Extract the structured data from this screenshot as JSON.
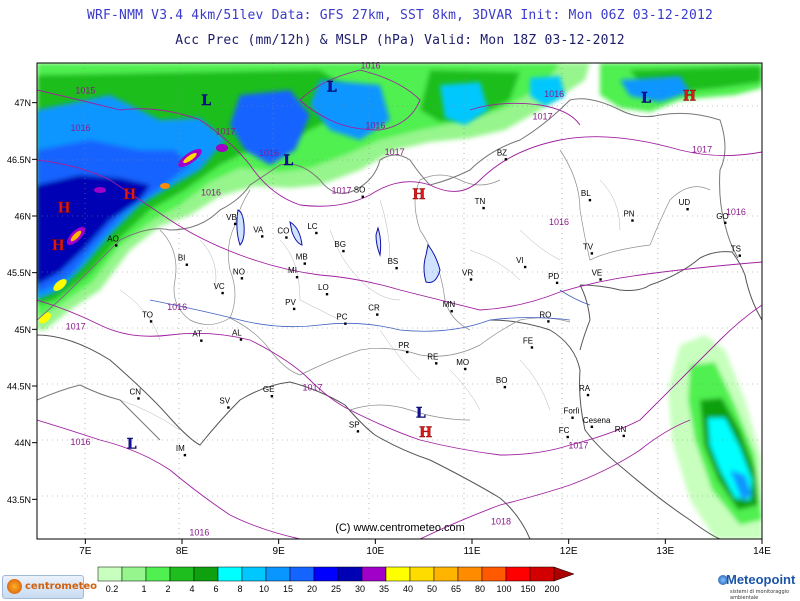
{
  "header": {
    "line1": "WRF-NMM V3.4 4km/51lev  Data: GFS 27km, SST 8km, 3DVAR  Init: Mon 06Z 03-12-2012",
    "line2": "Acc Prec (mm/12h) & MSLP (hPa)  Valid: Mon 18Z 03-12-2012"
  },
  "map": {
    "lon_ticks": [
      "7E",
      "8E",
      "9E",
      "10E",
      "11E",
      "12E",
      "13E",
      "14E"
    ],
    "lat_ticks": [
      "47N",
      "46.5N",
      "46N",
      "45.5N",
      "45N",
      "44.5N",
      "44N",
      "43.5N"
    ],
    "cities": [
      {
        "label": "AO",
        "lon": 7.32,
        "lat": 45.74
      },
      {
        "label": "TO",
        "lon": 7.68,
        "lat": 45.07
      },
      {
        "label": "BI",
        "lon": 8.05,
        "lat": 45.57
      },
      {
        "label": "VC",
        "lon": 8.42,
        "lat": 45.32
      },
      {
        "label": "NO",
        "lon": 8.62,
        "lat": 45.45
      },
      {
        "label": "VB",
        "lon": 8.55,
        "lat": 45.93
      },
      {
        "label": "VA",
        "lon": 8.83,
        "lat": 45.82
      },
      {
        "label": "CO",
        "lon": 9.08,
        "lat": 45.81
      },
      {
        "label": "LC",
        "lon": 9.39,
        "lat": 45.85
      },
      {
        "label": "MB",
        "lon": 9.27,
        "lat": 45.58
      },
      {
        "label": "MI",
        "lon": 9.19,
        "lat": 45.46
      },
      {
        "label": "BG",
        "lon": 9.67,
        "lat": 45.69
      },
      {
        "label": "SO",
        "lon": 9.87,
        "lat": 46.17
      },
      {
        "label": "BS",
        "lon": 10.22,
        "lat": 45.54
      },
      {
        "label": "AT",
        "lon": 8.2,
        "lat": 44.9
      },
      {
        "label": "AL",
        "lon": 8.61,
        "lat": 44.91
      },
      {
        "label": "PV",
        "lon": 9.16,
        "lat": 45.18
      },
      {
        "label": "LO",
        "lon": 9.5,
        "lat": 45.31
      },
      {
        "label": "CR",
        "lon": 10.02,
        "lat": 45.13
      },
      {
        "label": "PC",
        "lon": 9.69,
        "lat": 45.05
      },
      {
        "label": "CN",
        "lon": 7.55,
        "lat": 44.39
      },
      {
        "label": "SV",
        "lon": 8.48,
        "lat": 44.31
      },
      {
        "label": "GE",
        "lon": 8.93,
        "lat": 44.41
      },
      {
        "label": "IM",
        "lon": 8.03,
        "lat": 43.89
      },
      {
        "label": "SP",
        "lon": 9.82,
        "lat": 44.1
      },
      {
        "label": "PR",
        "lon": 10.33,
        "lat": 44.8
      },
      {
        "label": "RE",
        "lon": 10.63,
        "lat": 44.7
      },
      {
        "label": "MO",
        "lon": 10.93,
        "lat": 44.65
      },
      {
        "label": "MN",
        "lon": 10.79,
        "lat": 45.16
      },
      {
        "label": "VR",
        "lon": 10.99,
        "lat": 45.44
      },
      {
        "label": "TN",
        "lon": 11.12,
        "lat": 46.07
      },
      {
        "label": "BZ",
        "lon": 11.35,
        "lat": 46.5
      },
      {
        "label": "VI",
        "lon": 11.55,
        "lat": 45.55
      },
      {
        "label": "PD",
        "lon": 11.88,
        "lat": 45.41
      },
      {
        "label": "TV",
        "lon": 12.24,
        "lat": 45.67
      },
      {
        "label": "BL",
        "lon": 12.22,
        "lat": 46.14
      },
      {
        "label": "PN",
        "lon": 12.66,
        "lat": 45.96
      },
      {
        "label": "UD",
        "lon": 13.23,
        "lat": 46.06
      },
      {
        "label": "GO",
        "lon": 13.62,
        "lat": 45.94
      },
      {
        "label": "TS",
        "lon": 13.77,
        "lat": 45.65
      },
      {
        "label": "VE",
        "lon": 12.33,
        "lat": 45.44
      },
      {
        "label": "RO",
        "lon": 11.79,
        "lat": 45.07
      },
      {
        "label": "FE",
        "lon": 11.62,
        "lat": 44.84
      },
      {
        "label": "BO",
        "lon": 11.34,
        "lat": 44.49
      },
      {
        "label": "RA",
        "lon": 12.2,
        "lat": 44.42
      },
      {
        "label": "Forlì",
        "lon": 12.04,
        "lat": 44.22
      },
      {
        "label": "Cesena",
        "lon": 12.24,
        "lat": 44.14
      },
      {
        "label": "FC",
        "lon": 11.99,
        "lat": 44.05
      },
      {
        "label": "RN",
        "lon": 12.57,
        "lat": 44.06
      }
    ],
    "pressure_centers": [
      {
        "type": "L",
        "lon": 9.55,
        "lat": 47.1
      },
      {
        "type": "L",
        "lon": 8.25,
        "lat": 46.98
      },
      {
        "type": "L",
        "lon": 9.1,
        "lat": 46.45
      },
      {
        "type": "L",
        "lon": 12.8,
        "lat": 47.0
      },
      {
        "type": "L",
        "lon": 7.48,
        "lat": 43.95
      },
      {
        "type": "L",
        "lon": 10.47,
        "lat": 44.22
      },
      {
        "type": "H",
        "lon": 13.25,
        "lat": 47.02
      },
      {
        "type": "H",
        "lon": 6.78,
        "lat": 46.03
      },
      {
        "type": "H",
        "lon": 7.46,
        "lat": 46.15
      },
      {
        "type": "H",
        "lon": 6.72,
        "lat": 45.7
      },
      {
        "type": "H",
        "lon": 10.45,
        "lat": 46.15
      },
      {
        "type": "H",
        "lon": 10.52,
        "lat": 44.05
      }
    ],
    "isobar_labels": [
      {
        "text": "1015",
        "lon": 7.0,
        "lat": 47.08
      },
      {
        "text": "1016",
        "lon": 9.95,
        "lat": 47.3
      },
      {
        "text": "1016",
        "lon": 6.95,
        "lat": 46.75
      },
      {
        "text": "1017",
        "lon": 8.45,
        "lat": 46.72
      },
      {
        "text": "1016",
        "lon": 8.9,
        "lat": 46.53
      },
      {
        "text": "1016",
        "lon": 8.3,
        "lat": 46.18
      },
      {
        "text": "1017",
        "lon": 9.65,
        "lat": 46.2
      },
      {
        "text": "1016",
        "lon": 10.0,
        "lat": 46.77
      },
      {
        "text": "1017",
        "lon": 10.2,
        "lat": 46.54
      },
      {
        "text": "1016",
        "lon": 11.85,
        "lat": 47.05
      },
      {
        "text": "1017",
        "lon": 11.73,
        "lat": 46.85
      },
      {
        "text": "1017",
        "lon": 13.38,
        "lat": 46.56
      },
      {
        "text": "1016",
        "lon": 13.73,
        "lat": 46.01
      },
      {
        "text": "1016",
        "lon": 11.9,
        "lat": 45.92
      },
      {
        "text": "1016",
        "lon": 7.95,
        "lat": 45.17
      },
      {
        "text": "1017",
        "lon": 6.9,
        "lat": 45.0
      },
      {
        "text": "1017",
        "lon": 9.35,
        "lat": 44.46
      },
      {
        "text": "1016",
        "lon": 6.95,
        "lat": 43.98
      },
      {
        "text": "1016",
        "lon": 8.18,
        "lat": 43.18
      },
      {
        "text": "1018",
        "lon": 11.3,
        "lat": 43.28
      },
      {
        "text": "1017",
        "lon": 12.1,
        "lat": 43.95
      }
    ],
    "copyright": "(C) www.centrometeo.com"
  },
  "colorbar": {
    "labels": [
      "0.2",
      "1",
      "2",
      "4",
      "6",
      "8",
      "10",
      "15",
      "20",
      "25",
      "30",
      "35",
      "40",
      "50",
      "65",
      "80",
      "100",
      "150",
      "200"
    ],
    "colors": [
      "#ffffff",
      "#c8ffbe",
      "#96f58c",
      "#50f050",
      "#1ebe1e",
      "#0fa00f",
      "#00ffff",
      "#00c8ff",
      "#0a96ff",
      "#1464ff",
      "#0000ff",
      "#0000b4",
      "#a000c8",
      "#ffff00",
      "#ffdc00",
      "#ffb400",
      "#ff8c00",
      "#ff5a00",
      "#ff0000",
      "#d20000",
      "#aa0000"
    ]
  },
  "logos": {
    "left_text": "centrometeo",
    "right_title": "Meteopoint",
    "right_subtitle": "sistemi di monitoraggio ambientale"
  }
}
